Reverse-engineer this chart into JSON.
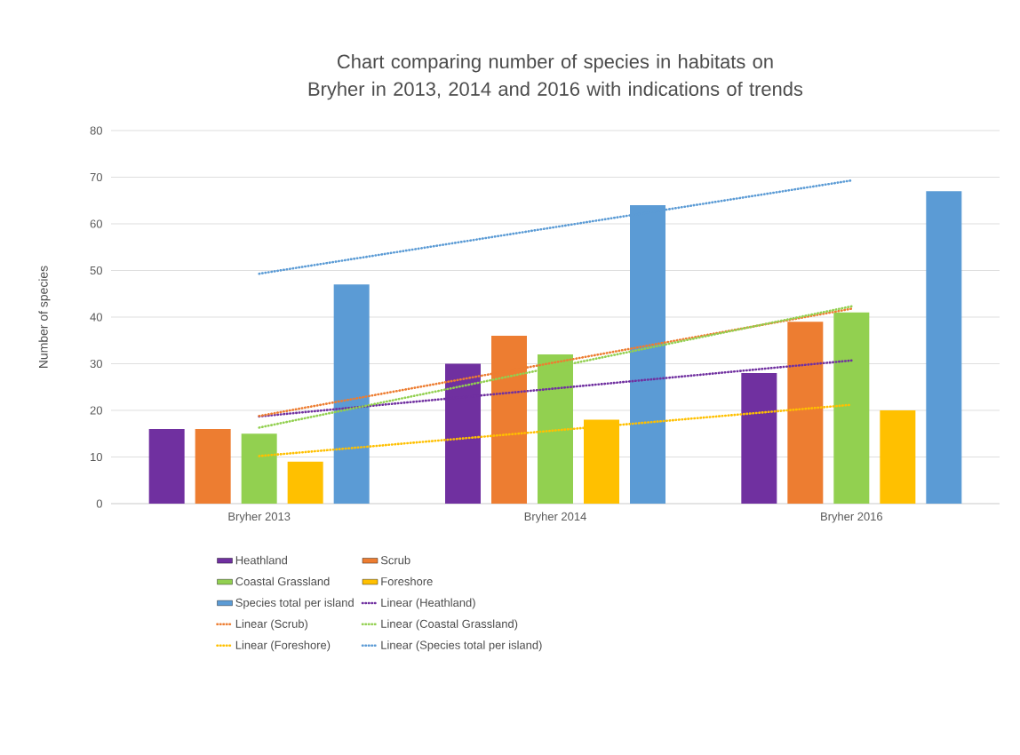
{
  "chart_data": {
    "type": "bar",
    "title": "Chart comparing number of species in habitats on Bryher in 2013, 2014 and 2016 with indications of trends",
    "ylabel": "Number of species",
    "categories": [
      "Bryher 2013",
      "Bryher 2014",
      "Bryher 2016"
    ],
    "series": [
      {
        "name": "Heathland",
        "color": "#7030a0",
        "values": [
          16,
          30,
          28
        ]
      },
      {
        "name": "Scrub",
        "color": "#ed7d31",
        "values": [
          16,
          36,
          39
        ]
      },
      {
        "name": "Coastal Grassland",
        "color": "#92d050",
        "values": [
          15,
          32,
          41
        ]
      },
      {
        "name": "Foreshore",
        "color": "#ffc000",
        "values": [
          9,
          18,
          20
        ]
      },
      {
        "name": "Species total per island",
        "color": "#5b9bd5",
        "values": [
          47,
          64,
          67
        ]
      },
      {
        "name": "Linear (Heathland)",
        "type": "line",
        "line_style": "dotted",
        "color": "#7030a0",
        "values": [
          18.7,
          24.7,
          30.7
        ]
      },
      {
        "name": "Linear (Scrub)",
        "type": "line",
        "line_style": "dotted",
        "color": "#ed7d31",
        "values": [
          18.8,
          30.3,
          41.8
        ]
      },
      {
        "name": "Linear (Coastal Grassland)",
        "type": "line",
        "line_style": "dotted",
        "color": "#92d050",
        "values": [
          16.3,
          29.3,
          42.3
        ]
      },
      {
        "name": "Linear (Foreshore)",
        "type": "line",
        "line_style": "dotted",
        "color": "#ffc000",
        "values": [
          10.2,
          15.7,
          21.2
        ]
      },
      {
        "name": "Linear (Species total per island)",
        "type": "line",
        "line_style": "dotted",
        "color": "#5b9bd5",
        "values": [
          49.3,
          59.3,
          69.3
        ]
      }
    ],
    "ylim": [
      0,
      80
    ],
    "yticks": [
      0,
      10,
      20,
      30,
      40,
      50,
      60,
      70,
      80
    ],
    "grid": "y",
    "legend": "bottom"
  }
}
